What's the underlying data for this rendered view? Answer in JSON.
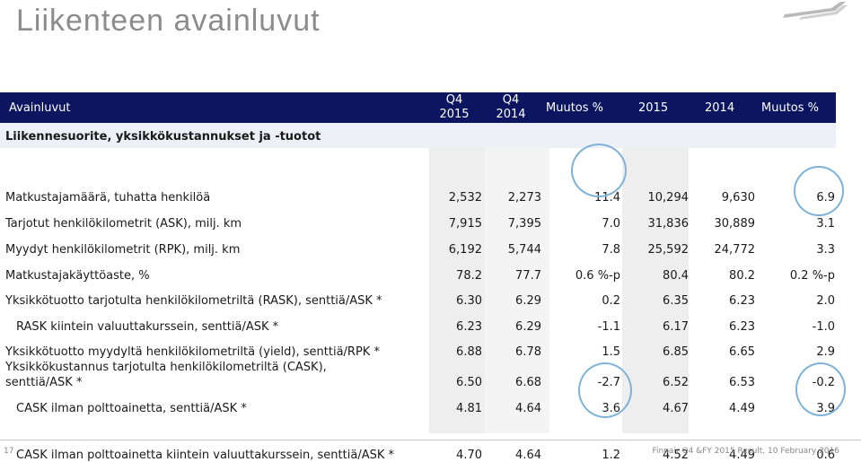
{
  "slide": {
    "title": "Liikenteen avainluvut",
    "page_number": "17",
    "footer": "Finnair Q4 &FY 2015 Result, 10 February 2016",
    "logo_icon": "finnair-wings-logo"
  },
  "table": {
    "headers": {
      "label": "Avainluvut",
      "q4_2015": [
        "Q4",
        "2015"
      ],
      "q4_2014": [
        "Q4",
        "2014"
      ],
      "change_q": "Muutos %",
      "y2015": "2015",
      "y2014": "2014",
      "change_y": "Muutos %"
    },
    "section": "Liikennesuorite, yksikkökustannukset ja -tuotot",
    "rows": [
      {
        "label": "Matkustajamäärä, tuhatta henkilöä",
        "q4_2015": "2,532",
        "q4_2014": "2,273",
        "change_q": "11.4",
        "y2015": "10,294",
        "y2014": "9,630",
        "change_y": "6.9"
      },
      {
        "label": "Tarjotut henkilökilometrit (ASK), milj. km",
        "q4_2015": "7,915",
        "q4_2014": "7,395",
        "change_q": "7.0",
        "y2015": "31,836",
        "y2014": "30,889",
        "change_y": "3.1"
      },
      {
        "label": "Myydyt henkilökilometrit (RPK), milj. km",
        "q4_2015": "6,192",
        "q4_2014": "5,744",
        "change_q": "7.8",
        "y2015": "25,592",
        "y2014": "24,772",
        "change_y": "3.3"
      },
      {
        "label": "Matkustajakäyttöaste, %",
        "q4_2015": "78.2",
        "q4_2014": "77.7",
        "change_q": "0.6 %-p",
        "y2015": "80.4",
        "y2014": "80.2",
        "change_y": "0.2 %-p"
      },
      {
        "label": "Yksikkötuotto tarjotulta henkilökilometriltä (RASK), senttiä/ASK *",
        "q4_2015": "6.30",
        "q4_2014": "6.29",
        "change_q": "0.2",
        "y2015": "6.35",
        "y2014": "6.23",
        "change_y": "2.0"
      },
      {
        "label": "RASK kiintein valuuttakurssein, senttiä/ASK *",
        "q4_2015": "6.23",
        "q4_2014": "6.29",
        "change_q": "-1.1",
        "y2015": "6.17",
        "y2014": "6.23",
        "change_y": "-1.0"
      },
      {
        "label": "Yksikkötuotto myydyltä henkilökilometriltä (yield), senttiä/RPK *",
        "q4_2015": "6.88",
        "q4_2014": "6.78",
        "change_q": "1.5",
        "y2015": "6.85",
        "y2014": "6.65",
        "change_y": "2.9"
      },
      {
        "label": "Yksikkökustannus tarjotulta henkilökilometriltä (CASK),",
        "label2": "senttiä/ASK *",
        "q4_2015": "6.50",
        "q4_2014": "6.68",
        "change_q": "-2.7",
        "y2015": "6.52",
        "y2014": "6.53",
        "change_y": "-0.2"
      },
      {
        "label": "CASK ilman polttoainetta, senttiä/ASK *",
        "q4_2015": "4.81",
        "q4_2014": "4.64",
        "change_q": "3.6",
        "y2015": "4.67",
        "y2014": "4.49",
        "change_y": "3.9"
      },
      {
        "label": "CASK ilman polttoainetta kiintein valuuttakurssein, senttiä/ASK *",
        "q4_2015": "4.70",
        "q4_2014": "4.64",
        "change_q": "1.2",
        "y2015": "4.52",
        "y2014": "4.49",
        "change_y": "0.6"
      }
    ]
  },
  "colors": {
    "header_bg": "#0b1560",
    "title": "#8c8c8c",
    "circle": "#7fb2d8"
  }
}
